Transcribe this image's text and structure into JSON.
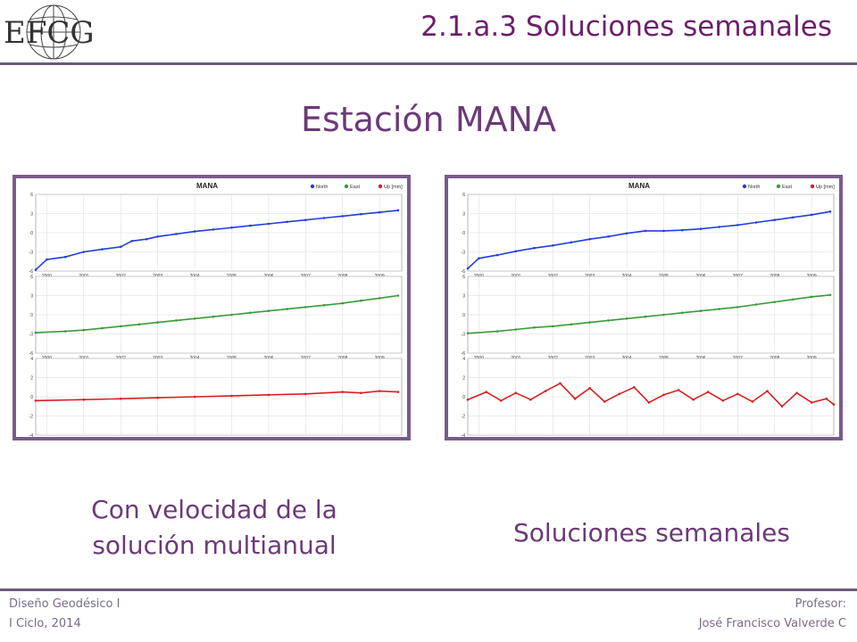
{
  "logo": {
    "text": "EFCG"
  },
  "slide_title": "2.1.a.3 Soluciones semanales",
  "heading": "Estación MANA",
  "legend": {
    "north": "North",
    "east": "East",
    "up": "Up [mm]",
    "colors": {
      "north": "#2040d8",
      "east": "#3a9a3a",
      "up": "#d82020"
    }
  },
  "captions": {
    "left_line1": "Con velocidad de la",
    "left_line2": "solución multianual",
    "right": "Soluciones semanales"
  },
  "footer": {
    "course": "Diseño Geodésico I",
    "term": "I Ciclo, 2014",
    "profesor_label": "Profesor:",
    "profesor_name": "José Francisco Valverde C"
  },
  "chart_data": [
    {
      "type": "line",
      "title": "MANA",
      "x_ticks": [
        "2000",
        "2001",
        "2002",
        "2003",
        "2004",
        "2005",
        "2006",
        "2007",
        "2008",
        "2009"
      ],
      "xlim": [
        1999.7,
        2009.6
      ],
      "series": [
        {
          "name": "North",
          "ylim": [
            -6,
            6
          ],
          "y_ticks": [
            "6",
            "3",
            "0",
            "-3",
            "-6"
          ],
          "x": [
            1999.7,
            2000.0,
            2000.5,
            2001.0,
            2001.5,
            2002.0,
            2002.3,
            2002.7,
            2003.0,
            2003.5,
            2004.0,
            2004.5,
            2005.0,
            2005.5,
            2006.0,
            2006.5,
            2007.0,
            2007.5,
            2008.0,
            2008.5,
            2009.0,
            2009.5
          ],
          "values": [
            -5.8,
            -4.2,
            -3.8,
            -3.0,
            -2.6,
            -2.2,
            -1.3,
            -1.0,
            -0.6,
            -0.2,
            0.2,
            0.5,
            0.8,
            1.1,
            1.4,
            1.7,
            2.0,
            2.3,
            2.6,
            2.9,
            3.2,
            3.5
          ]
        },
        {
          "name": "East",
          "ylim": [
            -6,
            6
          ],
          "y_ticks": [
            "6",
            "3",
            "0",
            "-3",
            "-6"
          ],
          "x": [
            1999.7,
            2000.5,
            2001.0,
            2001.5,
            2002.0,
            2002.5,
            2003.0,
            2003.5,
            2004.0,
            2004.5,
            2005.0,
            2005.5,
            2006.0,
            2006.5,
            2007.0,
            2007.5,
            2008.0,
            2008.5,
            2009.0,
            2009.5
          ],
          "values": [
            -2.8,
            -2.6,
            -2.4,
            -2.1,
            -1.8,
            -1.5,
            -1.2,
            -0.9,
            -0.6,
            -0.3,
            0.0,
            0.3,
            0.6,
            0.9,
            1.2,
            1.5,
            1.8,
            2.2,
            2.6,
            3.0
          ]
        },
        {
          "name": "Up [mm]",
          "ylim": [
            -4,
            4
          ],
          "y_ticks": [
            "4",
            "2",
            "0",
            "-2",
            "-4"
          ],
          "x": [
            1999.7,
            2001.0,
            2002.0,
            2003.0,
            2004.0,
            2005.0,
            2006.0,
            2007.0,
            2008.0,
            2008.5,
            2009.0,
            2009.5
          ],
          "values": [
            -0.4,
            -0.3,
            -0.2,
            -0.1,
            0.0,
            0.1,
            0.2,
            0.3,
            0.5,
            0.4,
            0.6,
            0.5
          ]
        }
      ]
    },
    {
      "type": "line",
      "title": "MANA",
      "x_ticks": [
        "2000",
        "2001",
        "2002",
        "2003",
        "2004",
        "2005",
        "2006",
        "2007",
        "2008",
        "2009"
      ],
      "xlim": [
        1999.7,
        2009.6
      ],
      "series": [
        {
          "name": "North",
          "ylim": [
            -6,
            6
          ],
          "y_ticks": [
            "6",
            "3",
            "0",
            "-3",
            "-6"
          ],
          "x": [
            1999.7,
            2000.0,
            2000.5,
            2001.0,
            2001.5,
            2002.0,
            2002.5,
            2003.0,
            2003.5,
            2004.0,
            2004.5,
            2005.0,
            2005.5,
            2006.0,
            2006.5,
            2007.0,
            2007.5,
            2008.0,
            2008.5,
            2009.0,
            2009.5
          ],
          "values": [
            -5.6,
            -4.0,
            -3.5,
            -2.9,
            -2.4,
            -2.0,
            -1.5,
            -1.0,
            -0.6,
            -0.1,
            0.3,
            0.3,
            0.4,
            0.6,
            0.9,
            1.2,
            1.6,
            2.0,
            2.4,
            2.8,
            3.3
          ]
        },
        {
          "name": "East",
          "ylim": [
            -6,
            6
          ],
          "y_ticks": [
            "6",
            "3",
            "0",
            "-3",
            "-6"
          ],
          "x": [
            1999.7,
            2000.5,
            2001.0,
            2001.5,
            2002.0,
            2002.5,
            2003.0,
            2003.5,
            2004.0,
            2004.5,
            2005.0,
            2005.5,
            2006.0,
            2006.5,
            2007.0,
            2007.5,
            2008.0,
            2008.5,
            2009.0,
            2009.5
          ],
          "values": [
            -2.9,
            -2.6,
            -2.3,
            -2.0,
            -1.8,
            -1.5,
            -1.2,
            -0.9,
            -0.6,
            -0.3,
            0.0,
            0.3,
            0.6,
            0.9,
            1.2,
            1.6,
            2.0,
            2.4,
            2.8,
            3.1
          ]
        },
        {
          "name": "Up [mm]",
          "ylim": [
            -4,
            4
          ],
          "y_ticks": [
            "4",
            "2",
            "0",
            "-2",
            "-4"
          ],
          "x": [
            1999.7,
            2000.2,
            2000.6,
            2001.0,
            2001.4,
            2001.8,
            2002.2,
            2002.6,
            2003.0,
            2003.4,
            2003.8,
            2004.2,
            2004.6,
            2005.0,
            2005.4,
            2005.8,
            2006.2,
            2006.6,
            2007.0,
            2007.4,
            2007.8,
            2008.2,
            2008.6,
            2009.0,
            2009.4,
            2009.6
          ],
          "values": [
            -0.3,
            0.5,
            -0.4,
            0.4,
            -0.3,
            0.6,
            1.4,
            -0.2,
            0.9,
            -0.5,
            0.3,
            1.0,
            -0.6,
            0.2,
            0.7,
            -0.3,
            0.5,
            -0.4,
            0.3,
            -0.5,
            0.6,
            -1.0,
            0.4,
            -0.6,
            -0.2,
            -0.8
          ]
        }
      ]
    }
  ]
}
